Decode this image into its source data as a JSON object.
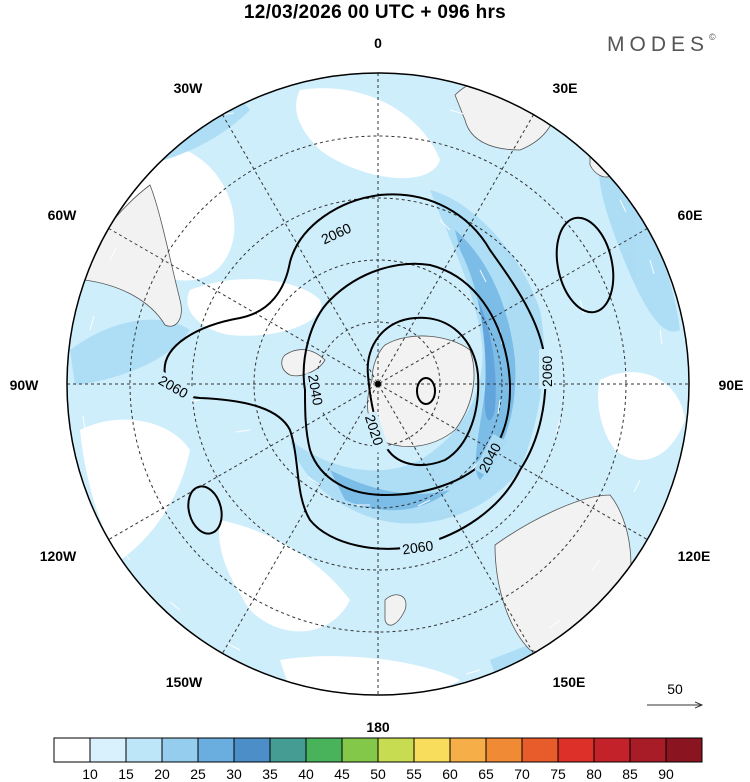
{
  "title": "12/03/2026  00 UTC  + 096 hrs",
  "brand": "MODES",
  "brand_mark": "©",
  "longitude_labels": {
    "top": "0",
    "top_left": "30W",
    "top_right": "30E",
    "upper_left": "60W",
    "upper_right": "60E",
    "left": "90W",
    "right": "90E",
    "lower_left": "120W",
    "lower_right": "120E",
    "bottom_left": "150W",
    "bottom_right": "150E",
    "bottom": "180"
  },
  "contour_labels": [
    "2060",
    "2060",
    "2060",
    "2060",
    "2040",
    "2040",
    "2020"
  ],
  "vector_reference": "50",
  "colorbar": {
    "ticks": [
      "10",
      "15",
      "20",
      "25",
      "30",
      "35",
      "40",
      "45",
      "50",
      "55",
      "60",
      "65",
      "70",
      "75",
      "80",
      "85",
      "90"
    ],
    "colors": [
      "#ffffff",
      "#d8f1fc",
      "#bde6f8",
      "#94cdee",
      "#6aaee0",
      "#4c8fc8",
      "#449c92",
      "#48b35a",
      "#84c84a",
      "#c8dc52",
      "#f8dc5c",
      "#f6ae48",
      "#f08a34",
      "#e85c2c",
      "#dc3028",
      "#c4222a",
      "#a81c28",
      "#8a1420"
    ]
  }
}
